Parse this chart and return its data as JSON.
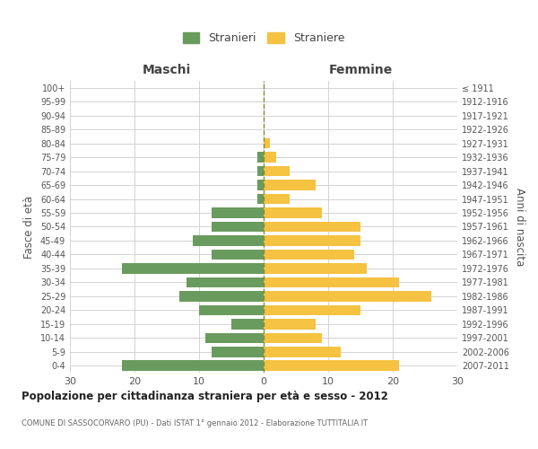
{
  "age_groups": [
    "0-4",
    "5-9",
    "10-14",
    "15-19",
    "20-24",
    "25-29",
    "30-34",
    "35-39",
    "40-44",
    "45-49",
    "50-54",
    "55-59",
    "60-64",
    "65-69",
    "70-74",
    "75-79",
    "80-84",
    "85-89",
    "90-94",
    "95-99",
    "100+"
  ],
  "birth_years": [
    "2007-2011",
    "2002-2006",
    "1997-2001",
    "1992-1996",
    "1987-1991",
    "1982-1986",
    "1977-1981",
    "1972-1976",
    "1967-1971",
    "1962-1966",
    "1957-1961",
    "1952-1956",
    "1947-1951",
    "1942-1946",
    "1937-1941",
    "1932-1936",
    "1927-1931",
    "1922-1926",
    "1917-1921",
    "1912-1916",
    "≤ 1911"
  ],
  "males": [
    22,
    8,
    9,
    5,
    10,
    13,
    12,
    22,
    8,
    11,
    8,
    8,
    1,
    1,
    1,
    1,
    0,
    0,
    0,
    0,
    0
  ],
  "females": [
    21,
    12,
    9,
    8,
    15,
    26,
    21,
    16,
    14,
    15,
    15,
    9,
    4,
    8,
    4,
    2,
    1,
    0,
    0,
    0,
    0
  ],
  "male_color": "#6a9b5e",
  "female_color": "#f5c242",
  "background_color": "#ffffff",
  "grid_color": "#cccccc",
  "title": "Popolazione per cittadinanza straniera per età e sesso - 2012",
  "subtitle": "COMUNE DI SASSOCORVARO (PU) - Dati ISTAT 1° gennaio 2012 - Elaborazione TUTTITALIA.IT",
  "xlabel_left": "Maschi",
  "xlabel_right": "Femmine",
  "ylabel_left": "Fasce di età",
  "ylabel_right": "Anni di nascita",
  "legend_male": "Stranieri",
  "legend_female": "Straniere",
  "xlim": 30,
  "bar_height": 0.75
}
